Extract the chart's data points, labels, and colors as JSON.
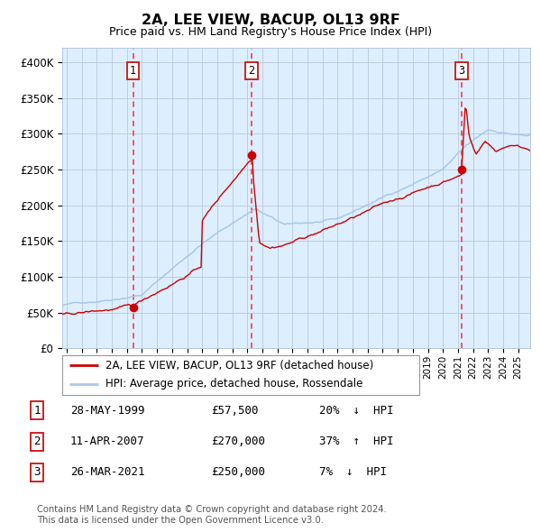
{
  "title": "2A, LEE VIEW, BACUP, OL13 9RF",
  "subtitle": "Price paid vs. HM Land Registry's House Price Index (HPI)",
  "legend_line1": "2A, LEE VIEW, BACUP, OL13 9RF (detached house)",
  "legend_line2": "HPI: Average price, detached house, Rossendale",
  "transactions": [
    {
      "num": 1,
      "date": "28-MAY-1999",
      "price": 57500,
      "pct": "20%",
      "dir": "↓",
      "year": 1999.41
    },
    {
      "num": 2,
      "date": "11-APR-2007",
      "price": 270000,
      "pct": "37%",
      "dir": "↑",
      "year": 2007.28
    },
    {
      "num": 3,
      "date": "26-MAR-2021",
      "price": 250000,
      "pct": "7%",
      "dir": "↓",
      "year": 2021.23
    }
  ],
  "footer1": "Contains HM Land Registry data © Crown copyright and database right 2024.",
  "footer2": "This data is licensed under the Open Government Licence v3.0.",
  "ylim": [
    0,
    420000
  ],
  "xlim_start": 1994.7,
  "xlim_end": 2025.8,
  "hpi_color": "#a8c8e8",
  "price_color": "#cc0000",
  "dot_color": "#cc0000",
  "vline_color": "#ee3333",
  "box_color": "#cc2222",
  "bg_color": "#ddeeff",
  "grid_color": "#b8c8d8",
  "yticks": [
    0,
    50000,
    100000,
    150000,
    200000,
    250000,
    300000,
    350000,
    400000
  ],
  "ytick_labels": [
    "£0",
    "£50K",
    "£100K",
    "£150K",
    "£200K",
    "£250K",
    "£300K",
    "£350K",
    "£400K"
  ]
}
